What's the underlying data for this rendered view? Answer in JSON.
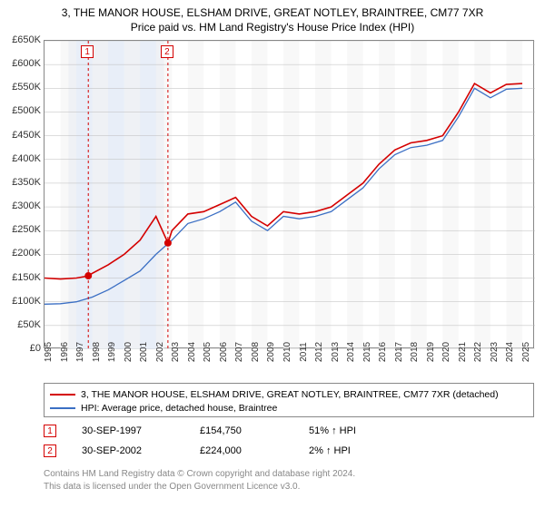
{
  "title_line1": "3, THE MANOR HOUSE, ELSHAM DRIVE, GREAT NOTLEY, BRAINTREE, CM77 7XR",
  "title_line2": "Price paid vs. HM Land Registry's House Price Index (HPI)",
  "chart": {
    "type": "line",
    "background_color": "#ffffff",
    "grid_band_color": "#e8eef8",
    "border_color": "#888888",
    "xlim": [
      1995,
      2025.8
    ],
    "ylim": [
      0,
      650000
    ],
    "ytick_step": 50000,
    "ytick_prefix": "£",
    "ytick_suffixes": {
      "0": "0",
      "50000": "50K",
      "100000": "100K",
      "150000": "150K",
      "200000": "200K",
      "250000": "250K",
      "300000": "300K",
      "350000": "350K",
      "400000": "400K",
      "450000": "450K",
      "500000": "500K",
      "550000": "550K",
      "600000": "600K",
      "650000": "650K"
    },
    "xticks": [
      1995,
      1996,
      1997,
      1998,
      1999,
      2000,
      2001,
      2002,
      2003,
      2004,
      2005,
      2006,
      2007,
      2008,
      2009,
      2010,
      2011,
      2012,
      2013,
      2014,
      2015,
      2016,
      2017,
      2018,
      2019,
      2020,
      2021,
      2022,
      2023,
      2024,
      2025
    ],
    "vertical_bands": [
      [
        1996.5,
        2002.5
      ]
    ],
    "series": [
      {
        "name": "subject",
        "label": "3, THE MANOR HOUSE, ELSHAM DRIVE, GREAT NOTLEY, BRAINTREE, CM77 7XR (detached)",
        "color": "#d40000",
        "line_width": 1.6,
        "data": [
          [
            1995,
            150000
          ],
          [
            1996,
            148000
          ],
          [
            1997,
            150000
          ],
          [
            1997.75,
            154750
          ],
          [
            1998,
            160000
          ],
          [
            1999,
            178000
          ],
          [
            2000,
            200000
          ],
          [
            2001,
            230000
          ],
          [
            2002,
            280000
          ],
          [
            2002.75,
            224000
          ],
          [
            2003,
            250000
          ],
          [
            2004,
            285000
          ],
          [
            2005,
            290000
          ],
          [
            2006,
            305000
          ],
          [
            2007,
            320000
          ],
          [
            2008,
            280000
          ],
          [
            2009,
            260000
          ],
          [
            2010,
            290000
          ],
          [
            2011,
            285000
          ],
          [
            2012,
            290000
          ],
          [
            2013,
            300000
          ],
          [
            2014,
            325000
          ],
          [
            2015,
            350000
          ],
          [
            2016,
            390000
          ],
          [
            2017,
            420000
          ],
          [
            2018,
            435000
          ],
          [
            2019,
            440000
          ],
          [
            2020,
            450000
          ],
          [
            2021,
            500000
          ],
          [
            2022,
            560000
          ],
          [
            2023,
            540000
          ],
          [
            2024,
            558000
          ],
          [
            2025,
            560000
          ]
        ]
      },
      {
        "name": "hpi",
        "label": "HPI: Average price, detached house, Braintree",
        "color": "#3b6fc4",
        "line_width": 1.3,
        "data": [
          [
            1995,
            95000
          ],
          [
            1996,
            96000
          ],
          [
            1997,
            100000
          ],
          [
            1998,
            110000
          ],
          [
            1999,
            125000
          ],
          [
            2000,
            145000
          ],
          [
            2001,
            165000
          ],
          [
            2002,
            200000
          ],
          [
            2003,
            230000
          ],
          [
            2004,
            265000
          ],
          [
            2005,
            275000
          ],
          [
            2006,
            290000
          ],
          [
            2007,
            310000
          ],
          [
            2008,
            270000
          ],
          [
            2009,
            250000
          ],
          [
            2010,
            280000
          ],
          [
            2011,
            275000
          ],
          [
            2012,
            280000
          ],
          [
            2013,
            290000
          ],
          [
            2014,
            315000
          ],
          [
            2015,
            340000
          ],
          [
            2016,
            380000
          ],
          [
            2017,
            410000
          ],
          [
            2018,
            425000
          ],
          [
            2019,
            430000
          ],
          [
            2020,
            440000
          ],
          [
            2021,
            490000
          ],
          [
            2022,
            550000
          ],
          [
            2023,
            530000
          ],
          [
            2024,
            548000
          ],
          [
            2025,
            550000
          ]
        ]
      }
    ],
    "sale_markers": [
      {
        "num": "1",
        "x": 1997.75,
        "y": 154750,
        "date": "30-SEP-1997",
        "price": "£154,750",
        "pct": "51% ↑ HPI",
        "color": "#d40000"
      },
      {
        "num": "2",
        "x": 2002.75,
        "y": 224000,
        "date": "30-SEP-2002",
        "price": "£224,000",
        "pct": "2% ↑ HPI",
        "color": "#d40000"
      }
    ],
    "marker_dash_color": "#d40000",
    "marker_dot_radius": 4
  },
  "legend": {
    "rows": [
      {
        "color": "#d40000",
        "label": "3, THE MANOR HOUSE, ELSHAM DRIVE, GREAT NOTLEY, BRAINTREE, CM77 7XR (detached)"
      },
      {
        "color": "#3b6fc4",
        "label": "HPI: Average price, detached house, Braintree"
      }
    ]
  },
  "footer_line1": "Contains HM Land Registry data © Crown copyright and database right 2024.",
  "footer_line2": "This data is licensed under the Open Government Licence v3.0."
}
